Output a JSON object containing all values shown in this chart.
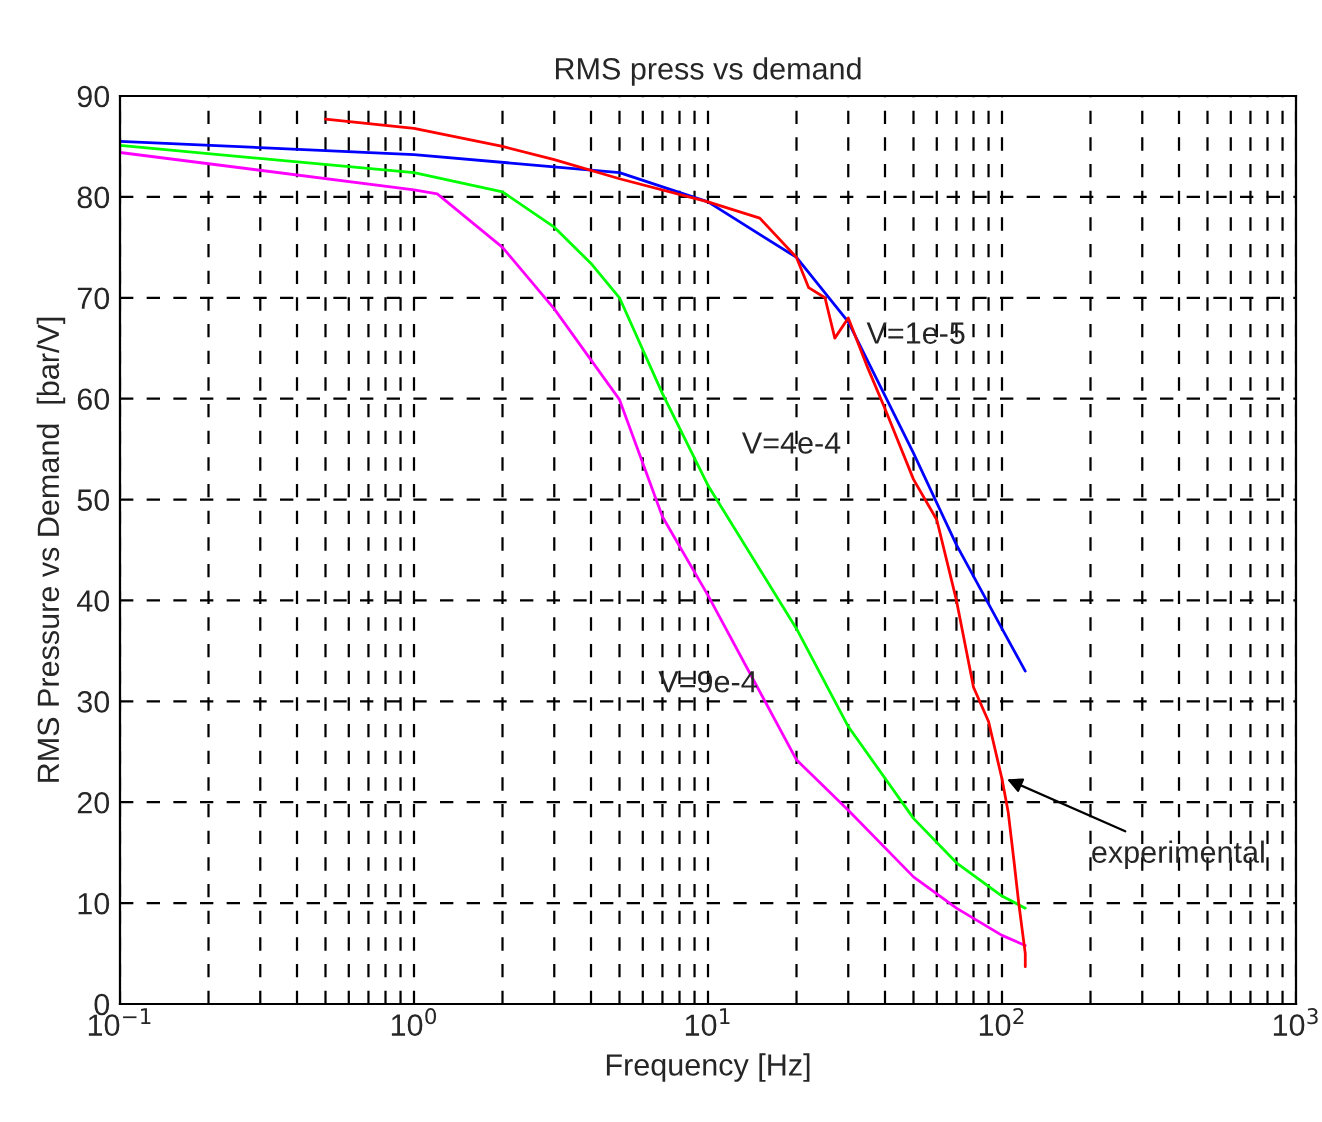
{
  "chart_data": {
    "type": "line",
    "title": "RMS press vs demand",
    "xlabel": "Frequency [Hz]",
    "ylabel": "RMS Pressure vs Demand  [bar/V]",
    "log": "x",
    "grid": true,
    "line_style": "solid",
    "marker": "none",
    "xlim": [
      0.1,
      1000
    ],
    "xticks": [
      {
        "value": 0.1,
        "label": "10$^{−1}$"
      },
      {
        "value": 1,
        "label": "10$^{0}$"
      },
      {
        "value": 10,
        "label": "10$^{1}$"
      },
      {
        "value": 100,
        "label": "10$^{2}$"
      },
      {
        "value": 1000,
        "label": "10$^{3}$"
      }
    ],
    "ylim": [
      0,
      90
    ],
    "yticks": [
      0,
      10,
      20,
      30,
      40,
      50,
      60,
      70,
      80,
      90
    ],
    "series": [
      {
        "color": "#0000ff",
        "x": [
          0.1,
          1,
          5,
          10,
          20,
          30,
          50,
          70,
          100,
          120
        ],
        "values": [
          85.5,
          84.2,
          82.4,
          79.5,
          74,
          67.6,
          54.6,
          45.5,
          37.2,
          33
        ]
      },
      {
        "color": "#00ff00",
        "x": [
          0.1,
          1,
          2,
          3,
          4,
          5,
          7,
          10,
          20,
          30,
          50,
          70,
          100,
          120
        ],
        "values": [
          85.1,
          82.4,
          80.5,
          77,
          73.4,
          70,
          60.5,
          51.4,
          37.2,
          27.5,
          18.4,
          14,
          10.7,
          9.5
        ]
      },
      {
        "color": "#ff00ff",
        "x": [
          0.1,
          1,
          1.2,
          2,
          3,
          5,
          7,
          10,
          20,
          30,
          50,
          70,
          100,
          120
        ],
        "values": [
          84.4,
          80.7,
          80.3,
          75,
          68.9,
          59.9,
          48.3,
          40.5,
          24.2,
          19.2,
          12.6,
          9.5,
          6.8,
          5.8
        ]
      },
      {
        "color": "#ff0000",
        "x": [
          0.5,
          1,
          2,
          3,
          5,
          10,
          15,
          20,
          22,
          25,
          27,
          30,
          35,
          40,
          50,
          60,
          70,
          80,
          90,
          100,
          105,
          110,
          114,
          120,
          120
        ],
        "values": [
          87.7,
          86.8,
          85,
          83.7,
          81.8,
          79.5,
          77.9,
          74,
          71,
          70,
          66,
          68,
          63,
          59,
          52,
          48,
          40,
          31.4,
          28,
          22.3,
          19,
          14,
          10,
          5,
          3.7
        ]
      }
    ],
    "annotations": [
      "V=1e-5",
      "V=4e-4",
      "V=9e-4",
      {
        "text": "experimental",
        "x": 100,
        "y": 22.5
      }
    ]
  }
}
